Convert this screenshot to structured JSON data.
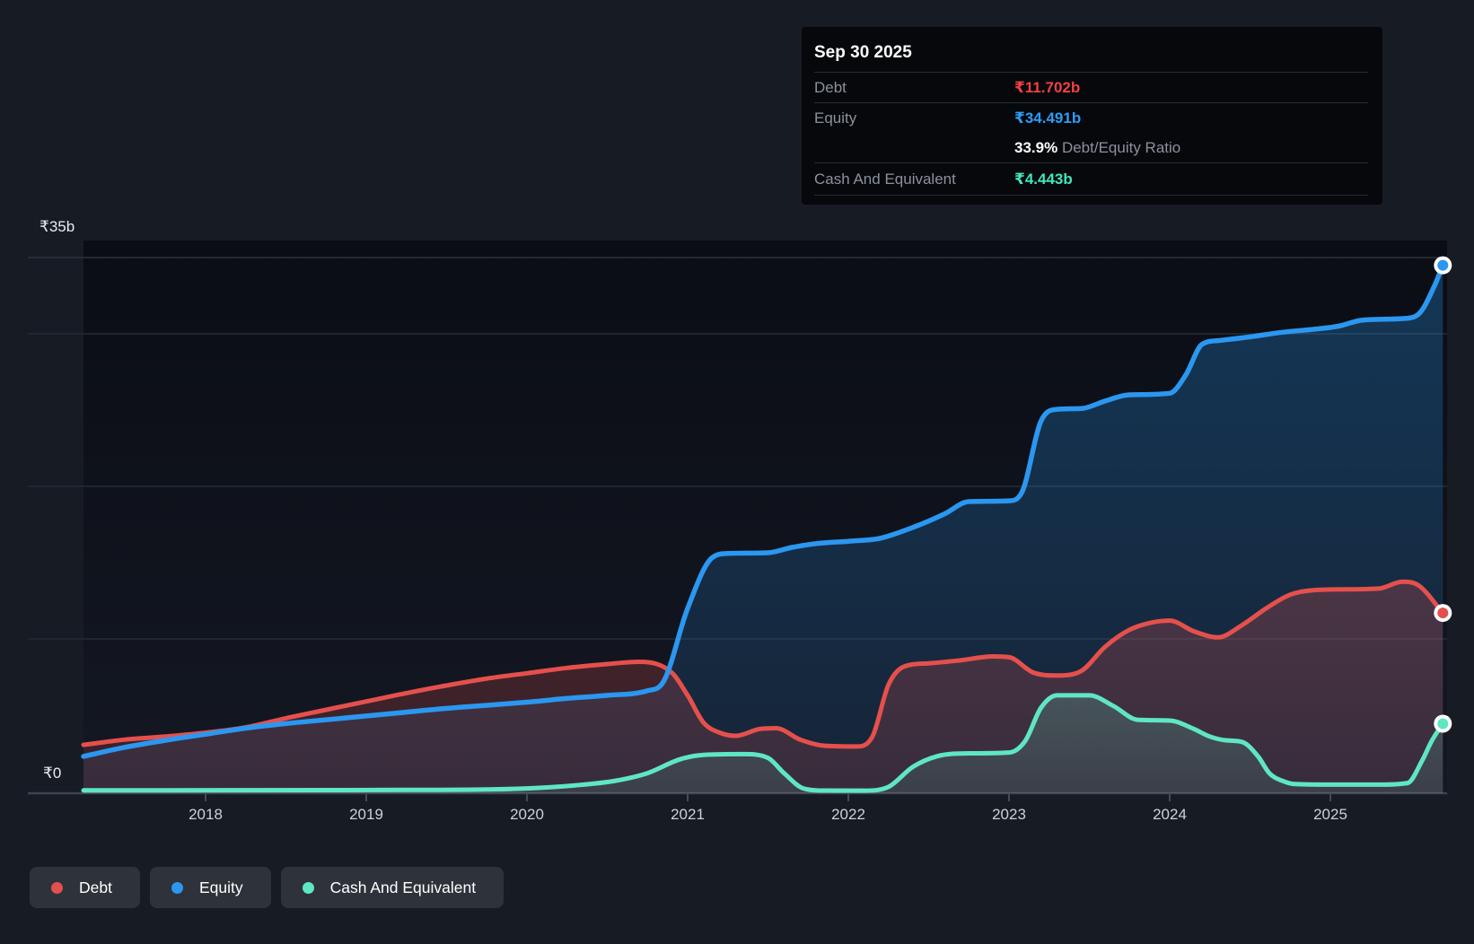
{
  "page": {
    "bg": "#171b24"
  },
  "tooltip": {
    "date": "Sep 30 2025",
    "debt_label": "Debt",
    "debt_value": "₹11.702b",
    "equity_label": "Equity",
    "equity_value": "₹34.491b",
    "ratio_value": "33.9%",
    "ratio_label": "Debt/Equity Ratio",
    "cash_label": "Cash And Equivalent",
    "cash_value": "₹4.443b"
  },
  "y_axis": {
    "top": "₹35b",
    "zero": "₹0"
  },
  "x_axis": {
    "years": [
      "2018",
      "2019",
      "2020",
      "2021",
      "2022",
      "2023",
      "2024",
      "2025"
    ]
  },
  "legend": {
    "debt": "Debt",
    "equity": "Equity",
    "cash": "Cash And Equivalent"
  },
  "colors": {
    "debt": "#e5504c",
    "equity": "#2b97f0",
    "cash": "#5fe6c3",
    "debt_value": "#f0423e",
    "equity_value": "#2e9df5",
    "cash_value": "#43e5bd"
  },
  "chart_data": {
    "type": "area",
    "unit": "₹ billions",
    "x_unit": "decimal year",
    "xlim": [
      2017.24,
      2025.75
    ],
    "ylim": [
      0,
      35
    ],
    "y_gridline_values_b": [
      10,
      20,
      30,
      35
    ],
    "y_axis_labeled_values": {
      "top_b": 35,
      "bottom_b": 0
    },
    "x_ticks_years": [
      2018,
      2019,
      2020,
      2021,
      2022,
      2023,
      2024,
      2025
    ],
    "legend_position": "bottom-left",
    "grid": true,
    "end_markers": true,
    "series": [
      {
        "name": "Debt",
        "key": "debt",
        "last_value_label": "₹11.702b",
        "points": [
          [
            2017.24,
            3.05
          ],
          [
            2017.5,
            3.4
          ],
          [
            2017.75,
            3.6
          ],
          [
            2018.0,
            3.85
          ],
          [
            2018.25,
            4.2
          ],
          [
            2018.5,
            4.8
          ],
          [
            2018.75,
            5.35
          ],
          [
            2019.0,
            5.9
          ],
          [
            2019.25,
            6.45
          ],
          [
            2019.5,
            6.95
          ],
          [
            2019.75,
            7.4
          ],
          [
            2020.0,
            7.75
          ],
          [
            2020.25,
            8.1
          ],
          [
            2020.5,
            8.35
          ],
          [
            2020.7,
            8.5
          ],
          [
            2020.9,
            7.8
          ],
          [
            2021.0,
            6.3
          ],
          [
            2021.1,
            4.5
          ],
          [
            2021.2,
            3.85
          ],
          [
            2021.3,
            3.65
          ],
          [
            2021.45,
            4.1
          ],
          [
            2021.55,
            4.15
          ],
          [
            2021.7,
            3.4
          ],
          [
            2021.85,
            3.0
          ],
          [
            2022.05,
            2.95
          ],
          [
            2022.15,
            3.6
          ],
          [
            2022.25,
            7.0
          ],
          [
            2022.35,
            8.2
          ],
          [
            2022.5,
            8.4
          ],
          [
            2022.7,
            8.6
          ],
          [
            2022.9,
            8.85
          ],
          [
            2023.0,
            8.8
          ],
          [
            2023.15,
            7.8
          ],
          [
            2023.3,
            7.6
          ],
          [
            2023.45,
            7.9
          ],
          [
            2023.6,
            9.5
          ],
          [
            2023.75,
            10.6
          ],
          [
            2023.9,
            11.1
          ],
          [
            2024.0,
            11.2
          ],
          [
            2024.15,
            10.5
          ],
          [
            2024.3,
            10.1
          ],
          [
            2024.45,
            10.9
          ],
          [
            2024.6,
            12.0
          ],
          [
            2024.75,
            12.9
          ],
          [
            2024.9,
            13.2
          ],
          [
            2025.1,
            13.25
          ],
          [
            2025.3,
            13.3
          ],
          [
            2025.45,
            13.75
          ],
          [
            2025.55,
            13.5
          ],
          [
            2025.7,
            11.702
          ]
        ]
      },
      {
        "name": "Equity",
        "key": "equity",
        "last_value_label": "₹34.491b",
        "points": [
          [
            2017.24,
            2.3
          ],
          [
            2017.5,
            2.9
          ],
          [
            2017.75,
            3.35
          ],
          [
            2018.0,
            3.75
          ],
          [
            2018.25,
            4.15
          ],
          [
            2018.5,
            4.45
          ],
          [
            2018.75,
            4.7
          ],
          [
            2019.0,
            4.95
          ],
          [
            2019.25,
            5.2
          ],
          [
            2019.5,
            5.45
          ],
          [
            2019.75,
            5.65
          ],
          [
            2020.0,
            5.85
          ],
          [
            2020.25,
            6.1
          ],
          [
            2020.5,
            6.3
          ],
          [
            2020.75,
            6.6
          ],
          [
            2020.85,
            7.2
          ],
          [
            2021.0,
            12.0
          ],
          [
            2021.15,
            15.3
          ],
          [
            2021.25,
            15.6
          ],
          [
            2021.5,
            15.65
          ],
          [
            2021.65,
            16.0
          ],
          [
            2021.8,
            16.25
          ],
          [
            2022.0,
            16.4
          ],
          [
            2022.2,
            16.6
          ],
          [
            2022.4,
            17.3
          ],
          [
            2022.6,
            18.2
          ],
          [
            2022.75,
            19.0
          ],
          [
            2023.0,
            19.05
          ],
          [
            2023.08,
            19.6
          ],
          [
            2023.2,
            24.3
          ],
          [
            2023.3,
            25.05
          ],
          [
            2023.45,
            25.1
          ],
          [
            2023.6,
            25.6
          ],
          [
            2023.75,
            26.0
          ],
          [
            2024.0,
            26.1
          ],
          [
            2024.1,
            27.3
          ],
          [
            2024.2,
            29.3
          ],
          [
            2024.3,
            29.55
          ],
          [
            2024.5,
            29.8
          ],
          [
            2024.7,
            30.1
          ],
          [
            2024.9,
            30.3
          ],
          [
            2025.05,
            30.5
          ],
          [
            2025.2,
            30.9
          ],
          [
            2025.45,
            31.0
          ],
          [
            2025.55,
            31.3
          ],
          [
            2025.65,
            33.2
          ],
          [
            2025.7,
            34.491
          ]
        ]
      },
      {
        "name": "Cash And Equivalent",
        "key": "cash",
        "last_value_label": "₹4.443b",
        "points": [
          [
            2017.24,
            0.07
          ],
          [
            2017.75,
            0.07
          ],
          [
            2018.25,
            0.08
          ],
          [
            2018.75,
            0.09
          ],
          [
            2019.25,
            0.1
          ],
          [
            2019.75,
            0.13
          ],
          [
            2020.0,
            0.2
          ],
          [
            2020.3,
            0.4
          ],
          [
            2020.55,
            0.7
          ],
          [
            2020.75,
            1.2
          ],
          [
            2020.95,
            2.1
          ],
          [
            2021.1,
            2.4
          ],
          [
            2021.35,
            2.45
          ],
          [
            2021.5,
            2.2
          ],
          [
            2021.6,
            1.2
          ],
          [
            2021.72,
            0.2
          ],
          [
            2021.85,
            0.06
          ],
          [
            2022.1,
            0.05
          ],
          [
            2022.25,
            0.3
          ],
          [
            2022.4,
            1.6
          ],
          [
            2022.55,
            2.3
          ],
          [
            2022.75,
            2.5
          ],
          [
            2023.0,
            2.55
          ],
          [
            2023.1,
            3.3
          ],
          [
            2023.2,
            5.5
          ],
          [
            2023.3,
            6.3
          ],
          [
            2023.5,
            6.3
          ],
          [
            2023.65,
            5.6
          ],
          [
            2023.8,
            4.7
          ],
          [
            2024.0,
            4.65
          ],
          [
            2024.15,
            4.1
          ],
          [
            2024.25,
            3.6
          ],
          [
            2024.35,
            3.35
          ],
          [
            2024.45,
            3.25
          ],
          [
            2024.55,
            2.3
          ],
          [
            2024.62,
            1.2
          ],
          [
            2024.7,
            0.7
          ],
          [
            2024.78,
            0.48
          ],
          [
            2025.0,
            0.45
          ],
          [
            2025.3,
            0.45
          ],
          [
            2025.48,
            0.55
          ],
          [
            2025.57,
            2.0
          ],
          [
            2025.63,
            3.3
          ],
          [
            2025.7,
            4.443
          ]
        ]
      }
    ]
  }
}
